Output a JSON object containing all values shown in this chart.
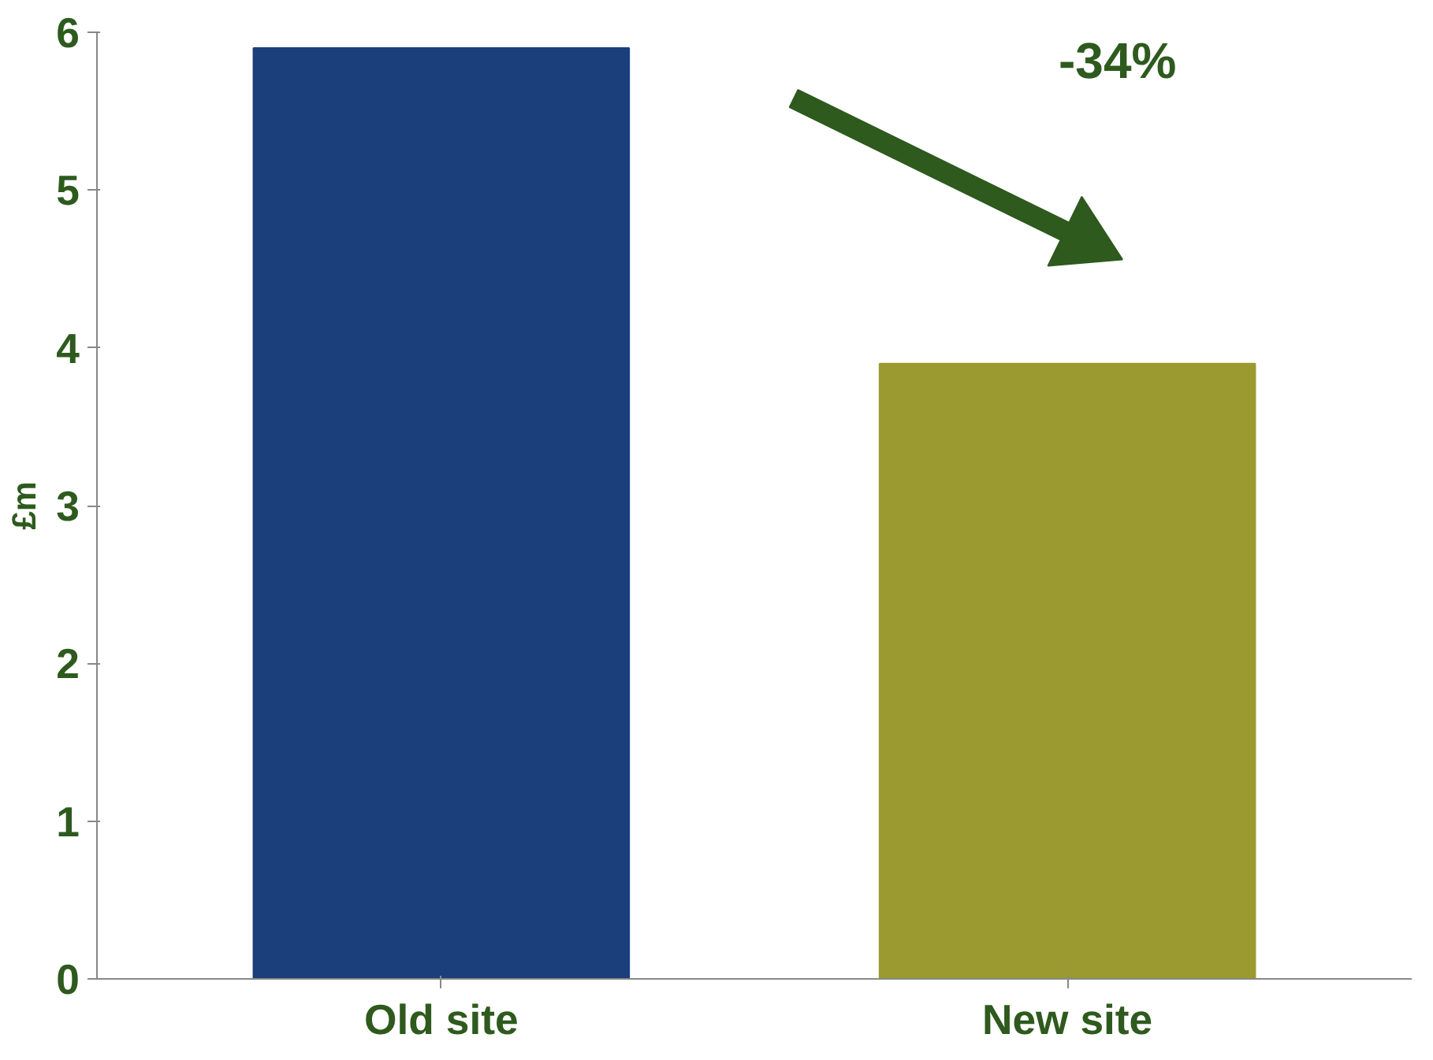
{
  "chart_data": {
    "type": "bar",
    "categories": [
      "Old site",
      "New site"
    ],
    "values": [
      5.9,
      3.9
    ],
    "colors": [
      "#1a3f7a",
      "#9a9a30"
    ],
    "ylabel": "£m",
    "ylim": [
      0,
      6
    ],
    "yticks": [
      0,
      1,
      2,
      3,
      4,
      5,
      6
    ],
    "grid": false,
    "annotations": [
      "-34%"
    ]
  }
}
